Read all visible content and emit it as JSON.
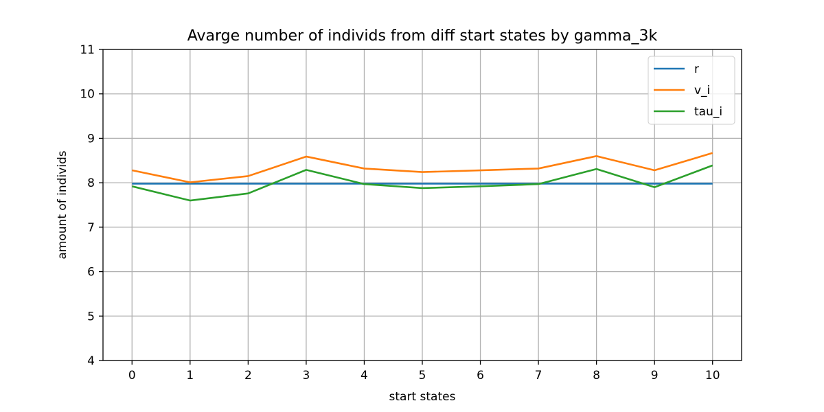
{
  "chart_data": {
    "type": "line",
    "title": "Avarge number of individs from diff start states by gamma_3k",
    "xlabel": "start states",
    "ylabel": "amount of individs",
    "x": [
      0,
      1,
      2,
      3,
      4,
      5,
      6,
      7,
      8,
      9,
      10
    ],
    "xlim": [
      -0.5,
      10.5
    ],
    "ylim": [
      4,
      11
    ],
    "xticks": [
      "0",
      "1",
      "2",
      "3",
      "4",
      "5",
      "6",
      "7",
      "8",
      "9",
      "10"
    ],
    "yticks": [
      "4",
      "5",
      "6",
      "7",
      "8",
      "9",
      "10",
      "11"
    ],
    "grid": true,
    "legend_position": "top-right",
    "series": [
      {
        "name": "r",
        "color": "#1f77b4",
        "values": [
          7.98,
          7.98,
          7.98,
          7.98,
          7.98,
          7.98,
          7.98,
          7.98,
          7.98,
          7.98,
          7.98
        ]
      },
      {
        "name": "v_i",
        "color": "#ff7f0e",
        "values": [
          8.28,
          8.01,
          8.15,
          8.59,
          8.32,
          8.24,
          8.28,
          8.32,
          8.6,
          8.28,
          8.67
        ]
      },
      {
        "name": "tau_i",
        "color": "#2ca02c",
        "values": [
          7.92,
          7.6,
          7.76,
          8.29,
          7.97,
          7.88,
          7.92,
          7.97,
          8.31,
          7.9,
          8.39
        ]
      }
    ]
  }
}
